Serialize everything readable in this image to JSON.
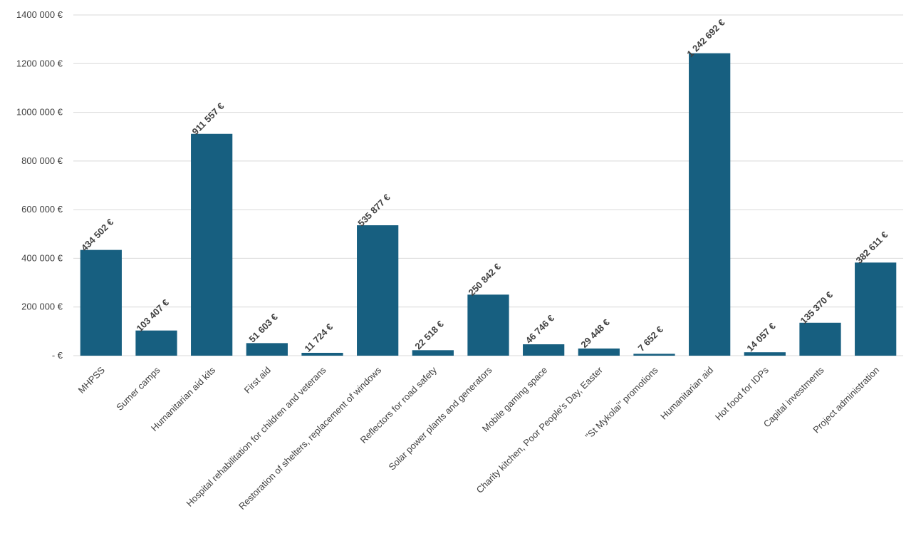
{
  "chart_data": {
    "type": "bar",
    "title": "",
    "xlabel": "",
    "ylabel": "",
    "ylim": [
      0,
      1400000
    ],
    "grid": true,
    "legend": "none",
    "bar_color": "#175f80",
    "y_ticks": [
      {
        "value": 0,
        "label": "- €"
      },
      {
        "value": 200000,
        "label": "200 000 €"
      },
      {
        "value": 400000,
        "label": "400 000 €"
      },
      {
        "value": 600000,
        "label": "600 000 €"
      },
      {
        "value": 800000,
        "label": "800 000 €"
      },
      {
        "value": 1000000,
        "label": "1000 000 €"
      },
      {
        "value": 1200000,
        "label": "1200 000 €"
      },
      {
        "value": 1400000,
        "label": "1400 000 €"
      }
    ],
    "categories": [
      "MHPSS",
      "Sumer camps",
      "Humanitarian aid kits",
      "First aid",
      "Hospital rehabilitation for children and veterans",
      "Restoration of shelters, replacement of windows",
      "Reflectors for road safety",
      "Solar power plants and generators",
      "Mobile gaming space",
      "Charity kitchen, Poor People's Day, Easter",
      "''St Mykolai'' promotions",
      "Humanitarian aid",
      "Hot food for IDPs",
      "Capital investments",
      "Project administration"
    ],
    "values": [
      434502,
      103407,
      911557,
      51603,
      11724,
      535877,
      22518,
      250842,
      46746,
      29448,
      7652,
      1242692,
      14057,
      135370,
      382611
    ],
    "data_labels": [
      "434 502 €",
      "103 407 €",
      "911 557 €",
      "51 603 €",
      "11 724 €",
      "535 877 €",
      "22 518 €",
      "250 842 €",
      "46 746 €",
      "29 448 €",
      "7 652 €",
      "1 242 692 €",
      "14 057 €",
      "135 370 €",
      "382 611 €"
    ]
  }
}
